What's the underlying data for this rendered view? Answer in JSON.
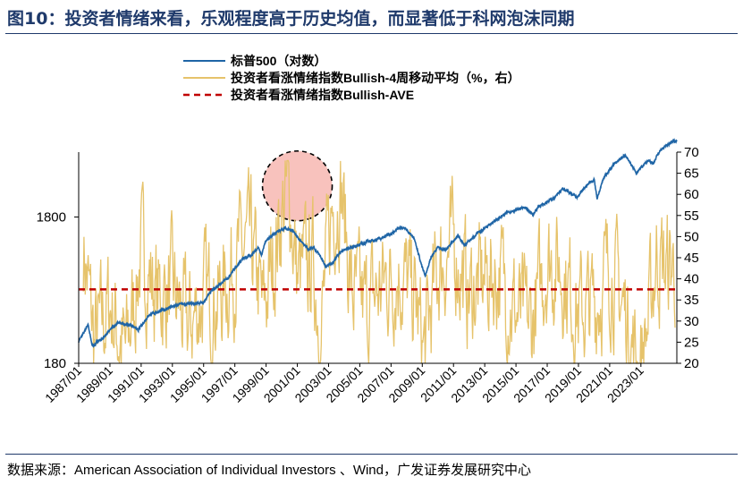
{
  "title": "图10：投资者情绪来看，乐观程度高于历史均值，而显著低于科网泡沫同期",
  "source": "数据来源：American Association of Individual Investors 、Wind，广发证券发展研究中心",
  "colors": {
    "sp500": "#1f65a6",
    "bullish": "#e6c36b",
    "avg": "#c00000",
    "circle_fill": "#f7b7b2",
    "title": "#1f3a6b"
  },
  "chart_data": {
    "type": "line",
    "series": [
      {
        "name": "标普500（对数）",
        "axis": "left",
        "style": "solid"
      },
      {
        "name": "投资者看涨情绪指数Bullish-4周移动平均（%，右）",
        "axis": "right",
        "style": "solid"
      },
      {
        "name": "投资者看涨情绪指数Bullish-AVE",
        "axis": "right",
        "style": "dashed",
        "value": 37.5
      }
    ],
    "x_ticks": [
      "1987/01",
      "1989/01",
      "1991/01",
      "1993/01",
      "1995/01",
      "1997/01",
      "1999/01",
      "2001/01",
      "2003/01",
      "2005/01",
      "2007/01",
      "2009/01",
      "2011/01",
      "2013/01",
      "2015/01",
      "2017/01",
      "2019/01",
      "2021/01",
      "2023/01"
    ],
    "x_range": [
      1987.0,
      2025.3
    ],
    "left_axis": {
      "scale": "log",
      "range": [
        180,
        5000
      ],
      "ticks": [
        180,
        1800
      ]
    },
    "right_axis": {
      "range": [
        20,
        70
      ],
      "ticks": [
        20,
        25,
        30,
        35,
        40,
        45,
        50,
        55,
        60,
        65,
        70
      ]
    },
    "sp500_points": [
      [
        1987.0,
        250
      ],
      [
        1987.6,
        330
      ],
      [
        1987.85,
        235
      ],
      [
        1988.5,
        265
      ],
      [
        1989.5,
        340
      ],
      [
        1990.5,
        325
      ],
      [
        1990.8,
        300
      ],
      [
        1991.5,
        385
      ],
      [
        1992.5,
        420
      ],
      [
        1993.5,
        455
      ],
      [
        1994.5,
        460
      ],
      [
        1995.0,
        470
      ],
      [
        1995.5,
        560
      ],
      [
        1996.5,
        680
      ],
      [
        1997.5,
        930
      ],
      [
        1998.0,
        980
      ],
      [
        1998.5,
        1120
      ],
      [
        1998.7,
        990
      ],
      [
        1999.0,
        1250
      ],
      [
        1999.5,
        1380
      ],
      [
        2000.2,
        1500
      ],
      [
        2000.7,
        1440
      ],
      [
        2001.0,
        1320
      ],
      [
        2001.7,
        1080
      ],
      [
        2002.0,
        1130
      ],
      [
        2002.5,
        960
      ],
      [
        2002.8,
        820
      ],
      [
        2003.2,
        860
      ],
      [
        2003.8,
        1050
      ],
      [
        2004.5,
        1120
      ],
      [
        2005.5,
        1220
      ],
      [
        2006.5,
        1300
      ],
      [
        2007.5,
        1500
      ],
      [
        2007.8,
        1540
      ],
      [
        2008.5,
        1280
      ],
      [
        2008.9,
        870
      ],
      [
        2009.2,
        700
      ],
      [
        2009.5,
        920
      ],
      [
        2010.0,
        1120
      ],
      [
        2010.5,
        1060
      ],
      [
        2011.3,
        1340
      ],
      [
        2011.7,
        1150
      ],
      [
        2012.5,
        1380
      ],
      [
        2013.5,
        1650
      ],
      [
        2014.5,
        1950
      ],
      [
        2015.5,
        2080
      ],
      [
        2016.1,
        1880
      ],
      [
        2016.5,
        2150
      ],
      [
        2017.5,
        2450
      ],
      [
        2018.0,
        2800
      ],
      [
        2018.9,
        2450
      ],
      [
        2019.5,
        2950
      ],
      [
        2020.0,
        3250
      ],
      [
        2020.2,
        2350
      ],
      [
        2020.6,
        3300
      ],
      [
        2021.0,
        3800
      ],
      [
        2021.5,
        4350
      ],
      [
        2022.0,
        4750
      ],
      [
        2022.7,
        3600
      ],
      [
        2023.0,
        3900
      ],
      [
        2023.5,
        4400
      ],
      [
        2023.8,
        4200
      ],
      [
        2024.2,
        5100
      ],
      [
        2024.6,
        5500
      ],
      [
        2025.0,
        5900
      ],
      [
        2025.3,
        5950
      ]
    ],
    "bullish_points": [
      [
        1987.3,
        48
      ],
      [
        1988.0,
        25
      ],
      [
        1989.0,
        34
      ],
      [
        1990.0,
        22
      ],
      [
        1991.0,
        46
      ],
      [
        1992.0,
        36
      ],
      [
        1993.0,
        37
      ],
      [
        1994.0,
        28
      ],
      [
        1995.0,
        36
      ],
      [
        1996.0,
        35
      ],
      [
        1997.0,
        44
      ],
      [
        1998.0,
        48
      ],
      [
        1998.8,
        32
      ],
      [
        1999.5,
        45
      ],
      [
        2000.0,
        56
      ],
      [
        2000.5,
        60
      ],
      [
        2001.0,
        40
      ],
      [
        2002.0,
        44
      ],
      [
        2002.5,
        28
      ],
      [
        2003.2,
        56
      ],
      [
        2003.8,
        62
      ],
      [
        2004.5,
        36
      ],
      [
        2005.5,
        33
      ],
      [
        2006.5,
        39
      ],
      [
        2007.5,
        42
      ],
      [
        2008.5,
        35
      ],
      [
        2009.1,
        23
      ],
      [
        2010.0,
        42
      ],
      [
        2011.0,
        48
      ],
      [
        2012.0,
        36
      ],
      [
        2013.0,
        40
      ],
      [
        2014.0,
        41
      ],
      [
        2015.0,
        32
      ],
      [
        2016.0,
        29
      ],
      [
        2017.0,
        45
      ],
      [
        2018.0,
        42
      ],
      [
        2019.0,
        32
      ],
      [
        2020.0,
        34
      ],
      [
        2021.0,
        43
      ],
      [
        2022.0,
        32
      ],
      [
        2022.7,
        21
      ],
      [
        2023.0,
        22
      ],
      [
        2023.5,
        30
      ],
      [
        2024.0,
        46
      ],
      [
        2024.6,
        42
      ],
      [
        2025.0,
        43
      ]
    ],
    "annotation": {
      "type": "dashed-circle",
      "center_year": 2001.0,
      "center_value_right": 62,
      "note": "科网泡沫同期"
    }
  }
}
